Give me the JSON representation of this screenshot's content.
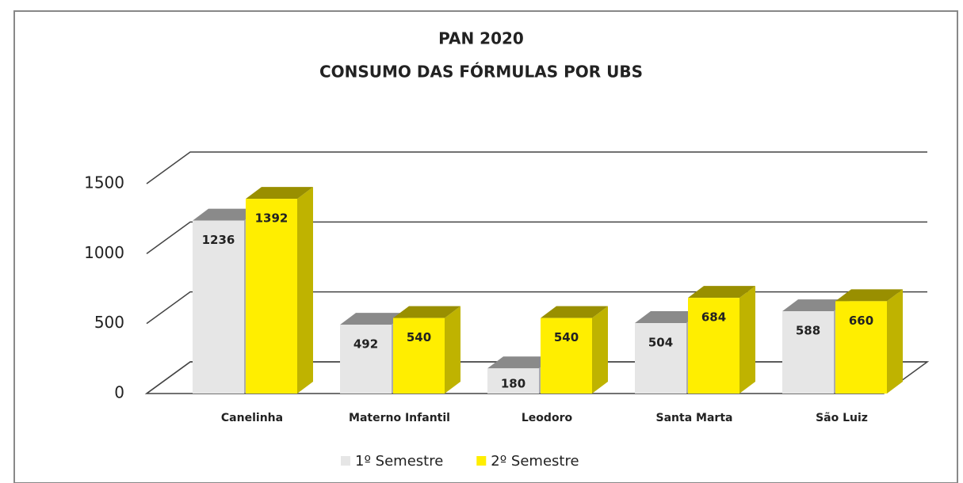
{
  "chart_data": {
    "type": "bar3d",
    "title": "PAN 2020",
    "subtitle": "CONSUMO DAS FÓRMULAS POR UBS",
    "categories": [
      "Canelinha",
      "Materno Infantil",
      "Leodoro",
      "Santa Marta",
      "São Luiz"
    ],
    "series": [
      {
        "name": "1º Semestre",
        "color": "#e6e6e6",
        "values": [
          1236,
          492,
          180,
          504,
          588
        ]
      },
      {
        "name": "2º Semestre",
        "color": "#ffee00",
        "values": [
          1392,
          540,
          540,
          684,
          660
        ]
      }
    ],
    "ylim": [
      0,
      1500
    ],
    "yticks": [
      0,
      500,
      1000,
      1500
    ],
    "grid": true,
    "legend": "bottom"
  }
}
